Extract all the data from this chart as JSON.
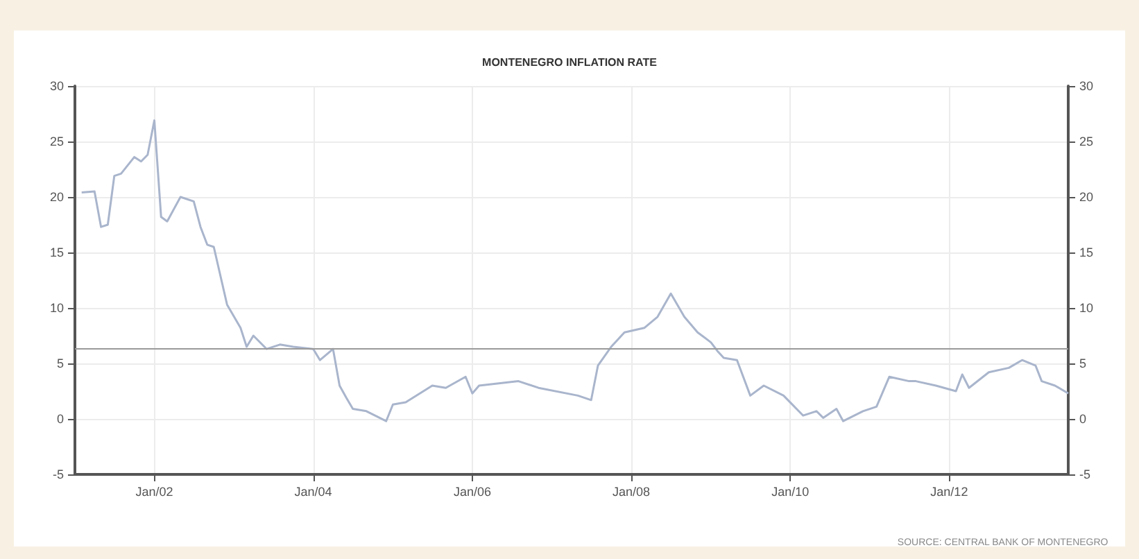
{
  "chart_data": {
    "type": "line",
    "title": "MONTENEGRO INFLATION RATE",
    "x": [
      "2001-02",
      "2001-04",
      "2001-05",
      "2001-06",
      "2001-07",
      "2001-08",
      "2001-10",
      "2001-11",
      "2001-12",
      "2002-01",
      "2002-02",
      "2002-03",
      "2002-05",
      "2002-07",
      "2002-08",
      "2002-09",
      "2002-10",
      "2002-12",
      "2003-02",
      "2003-03",
      "2003-04",
      "2003-06",
      "2003-08",
      "2003-10",
      "2004-01",
      "2004-02",
      "2004-04",
      "2004-05",
      "2004-06",
      "2004-07",
      "2004-09",
      "2004-12",
      "2005-01",
      "2005-03",
      "2005-07",
      "2005-09",
      "2005-12",
      "2006-01",
      "2006-02",
      "2006-08",
      "2006-11",
      "2007-05",
      "2007-07",
      "2007-08",
      "2007-10",
      "2007-12",
      "2008-03",
      "2008-05",
      "2008-07",
      "2008-09",
      "2008-11",
      "2009-01",
      "2009-02",
      "2009-03",
      "2009-05",
      "2009-07",
      "2009-09",
      "2009-12",
      "2010-03",
      "2010-05",
      "2010-06",
      "2010-08",
      "2010-09",
      "2010-12",
      "2011-02",
      "2011-04",
      "2011-07",
      "2011-08",
      "2011-11",
      "2012-02",
      "2012-03",
      "2012-04",
      "2012-07",
      "2012-10",
      "2012-12",
      "2013-02",
      "2013-03",
      "2013-05",
      "2013-07"
    ],
    "series": [
      {
        "color": "#a9b5cc",
        "values": [
          20.4,
          20.5,
          17.3,
          17.5,
          21.9,
          22.1,
          23.6,
          23.2,
          23.8,
          26.9,
          18.2,
          17.8,
          20.0,
          19.6,
          17.3,
          15.7,
          15.5,
          10.3,
          8.2,
          6.5,
          7.5,
          6.3,
          6.7,
          6.5,
          6.3,
          5.3,
          6.3,
          3.0,
          1.9,
          0.9,
          0.7,
          -0.2,
          1.3,
          1.5,
          3.0,
          2.8,
          3.8,
          2.3,
          3.0,
          3.4,
          2.8,
          2.1,
          1.7,
          4.8,
          6.5,
          7.8,
          8.2,
          9.2,
          11.3,
          9.2,
          7.8,
          6.9,
          6.1,
          5.5,
          5.3,
          2.1,
          3.0,
          2.1,
          0.3,
          0.7,
          0.1,
          0.9,
          -0.2,
          0.7,
          1.1,
          3.8,
          3.4,
          3.4,
          3.0,
          2.5,
          4.0,
          2.8,
          4.2,
          4.6,
          5.3,
          4.8,
          3.4,
          3.0,
          2.3
        ]
      }
    ],
    "xlim": [
      "2001-01",
      "2013-07"
    ],
    "xticks": [
      {
        "value": "2002-01",
        "label": "Jan/02"
      },
      {
        "value": "2004-01",
        "label": "Jan/04"
      },
      {
        "value": "2006-01",
        "label": "Jan/06"
      },
      {
        "value": "2008-01",
        "label": "Jan/08"
      },
      {
        "value": "2010-01",
        "label": "Jan/10"
      },
      {
        "value": "2012-01",
        "label": "Jan/12"
      }
    ],
    "ylim": [
      -5,
      30
    ],
    "yticks": [
      -5,
      0,
      5,
      10,
      15,
      20,
      25,
      30
    ],
    "y2lim": [
      -5,
      30
    ],
    "y2ticks": [
      -5,
      0,
      5,
      10,
      15,
      20,
      25,
      30
    ],
    "ref_lines": [
      {
        "axis": "y",
        "value": 6.3,
        "color": "#9a9a9a"
      }
    ],
    "grid": true,
    "marker": "none",
    "line_style": "solid",
    "annotations": [
      "SOURCE: CENTRAL BANK OF MONTENEGRO"
    ]
  }
}
